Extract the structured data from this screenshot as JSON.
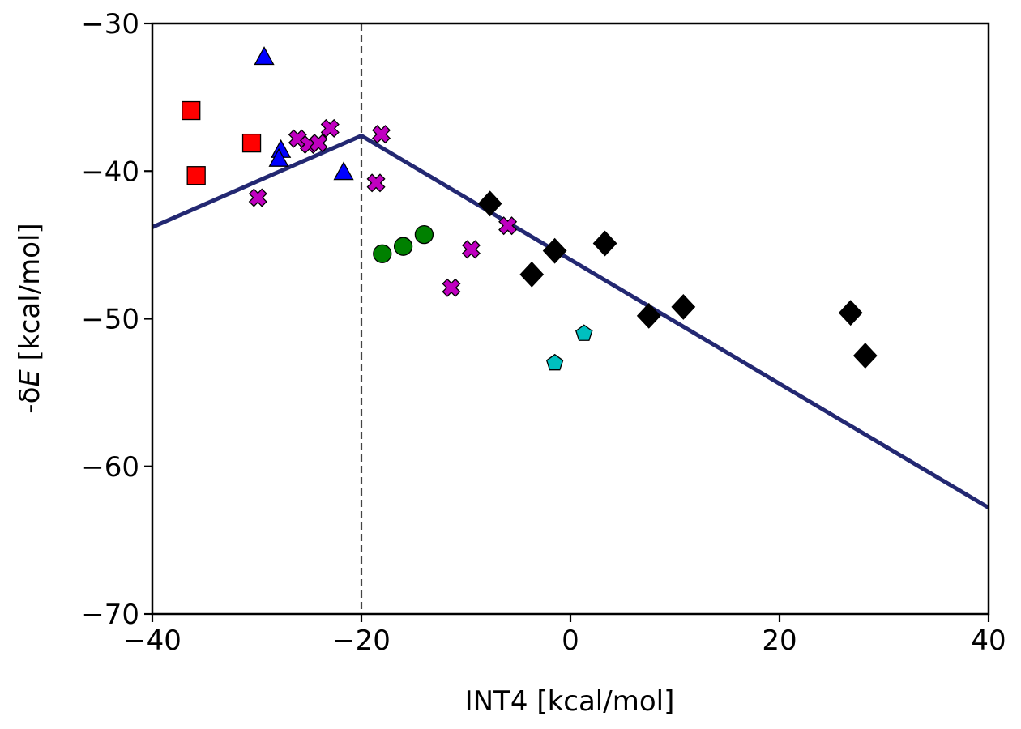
{
  "chart_data": {
    "type": "scatter",
    "xlabel": "INT4 [kcal/mol]",
    "ylabel_prefix": "-δ",
    "ylabel_italic": "E",
    "ylabel_suffix": " [kcal/mol]",
    "xlim": [
      -40,
      40
    ],
    "ylim": [
      -70,
      -30
    ],
    "xticks": [
      -40,
      -20,
      0,
      20,
      40
    ],
    "xtick_labels": [
      "−40",
      "−20",
      "0",
      "20",
      "40"
    ],
    "yticks": [
      -30,
      -40,
      -50,
      -60,
      -70
    ],
    "ytick_labels": [
      "−30",
      "−40",
      "−50",
      "−60",
      "−70"
    ],
    "grid": false,
    "vline": {
      "x": -20,
      "style": "dashed",
      "color": "#444444"
    },
    "volcano_line": {
      "color": "#232872",
      "x": [
        -40,
        -20,
        40
      ],
      "y": [
        -43.8,
        -37.6,
        -62.8
      ]
    },
    "series": [
      {
        "marker": "square",
        "color": "#ff0000",
        "x": [
          -36.3,
          -35.8,
          -30.5
        ],
        "y": [
          -35.9,
          -40.3,
          -38.1
        ]
      },
      {
        "marker": "triangle",
        "color": "#0000ff",
        "x": [
          -29.3,
          -27.7,
          -27.9,
          -21.7
        ],
        "y": [
          -32.3,
          -38.6,
          -39.2,
          -40.1
        ]
      },
      {
        "marker": "x-filled",
        "color": "#c000c0",
        "x": [
          -29.9,
          -26.1,
          -25.0,
          -24.1,
          -23.0,
          -18.6,
          -18.1,
          -11.4,
          -9.5,
          -6.0
        ],
        "y": [
          -41.8,
          -37.8,
          -38.2,
          -38.1,
          -37.1,
          -40.8,
          -37.5,
          -47.9,
          -45.3,
          -43.7
        ]
      },
      {
        "marker": "circle",
        "color": "#008000",
        "x": [
          -18.0,
          -16.0,
          -14.0
        ],
        "y": [
          -45.6,
          -45.1,
          -44.3
        ]
      },
      {
        "marker": "diamond",
        "color": "#000000",
        "x": [
          -7.7,
          -3.7,
          -1.5,
          3.3,
          7.5,
          10.8,
          26.8,
          28.2
        ],
        "y": [
          -42.2,
          -47.0,
          -45.4,
          -44.9,
          -49.8,
          -49.2,
          -49.6,
          -52.5
        ]
      },
      {
        "marker": "pentagon",
        "color": "#00bfbf",
        "x": [
          -1.5,
          1.3
        ],
        "y": [
          -53.0,
          -51.0
        ]
      }
    ]
  }
}
